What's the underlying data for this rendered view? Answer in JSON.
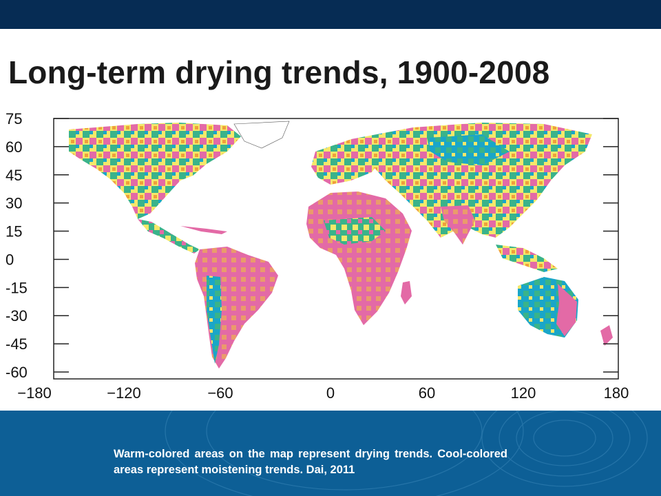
{
  "slide": {
    "title": "Long-term drying trends, 1900-2008",
    "caption": "Warm-colored areas on the map represent drying trends. Cool-colored areas represent moistening trends. Dai, 2011"
  },
  "map": {
    "type": "world drought-trend map",
    "y_ticks": [
      "75",
      "60",
      "45",
      "30",
      "15",
      "0",
      "-15",
      "-30",
      "-45",
      "-60"
    ],
    "x_ticks": [
      "−180",
      "−120",
      "−60",
      "0",
      "60",
      "120",
      "180"
    ],
    "colors": {
      "drying_strong": "#e36aa6",
      "drying_weak": "#f0c23a",
      "neutral": "#f4e86a",
      "moistening_weak": "#3ab38a",
      "moistening_strong": "#1aa6c8",
      "moistening_light": "#7dcf70"
    }
  },
  "colors": {
    "header_bar": "#062c54",
    "footer_bar": "#0d5f96"
  }
}
